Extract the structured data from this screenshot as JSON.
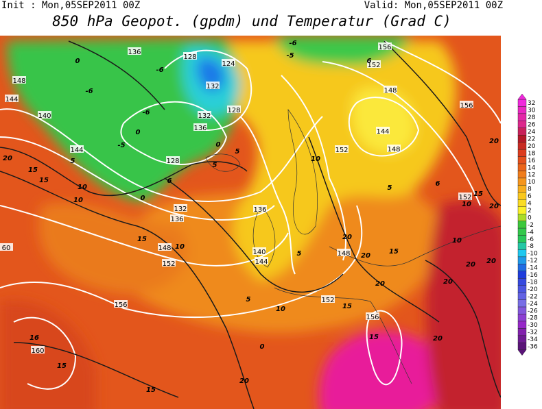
{
  "header": {
    "init": "Init : Mon,05SEP2011 00Z",
    "valid": "Valid: Mon,05SEP2011 00Z",
    "title": "850 hPa Geopot. (gpdm) und Temperatur (Grad C)"
  },
  "colorbar": {
    "labels": [
      32,
      30,
      28,
      26,
      24,
      22,
      20,
      18,
      16,
      14,
      12,
      10,
      8,
      6,
      4,
      2,
      0,
      -2,
      -4,
      -6,
      -8,
      -10,
      -12,
      -14,
      -16,
      -18,
      -20,
      -22,
      -24,
      -26,
      -28,
      -30,
      -32,
      -34,
      -36
    ]
  },
  "map": {
    "geopotential_labels": [
      "136",
      "128",
      "124",
      "132",
      "128",
      "132",
      "136",
      "128",
      "140",
      "144",
      "148",
      "144",
      "132",
      "136",
      "148",
      "152",
      "136",
      "140",
      "144",
      "148",
      "152",
      "156",
      "160",
      "156",
      "152",
      "148",
      "144",
      "148",
      "152",
      "156",
      "156",
      "152",
      "60"
    ],
    "temperature_labels": [
      "-6",
      "-5",
      "-6",
      "-6",
      "-6",
      "-5",
      "0",
      "0",
      "0",
      "5",
      "5",
      "0",
      "6",
      "10",
      "5",
      "15",
      "15",
      "10",
      "10",
      "20",
      "15",
      "10",
      "5",
      "10",
      "5",
      "20",
      "20",
      "15",
      "20",
      "15",
      "15",
      "20",
      "10",
      "10",
      "15",
      "20",
      "20",
      "20",
      "20",
      "20",
      "15",
      "15",
      "16",
      "0",
      "6",
      "5",
      "6",
      "20"
    ]
  }
}
